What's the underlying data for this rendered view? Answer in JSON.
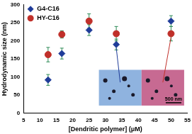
{
  "chart_data": {
    "type": "scatter",
    "x_label": "[Dendritic polymer] (μM)",
    "y_label": "Hydrodynamic size (nm)",
    "xlim": [
      5,
      55
    ],
    "xticks": [
      5,
      10,
      15,
      20,
      25,
      30,
      35,
      40,
      45,
      50,
      55
    ],
    "ylim": [
      0,
      300
    ],
    "yticks": [
      0,
      50,
      100,
      150,
      200,
      250,
      300
    ],
    "grid": false,
    "legend": "upper left",
    "annotation": "500 nm",
    "series": [
      {
        "name": "G4-C16",
        "color": "#1f3c99",
        "marker": "diamond",
        "x": [
          12.5,
          16.7,
          25,
          33.3,
          50
        ],
        "values": [
          92,
          165,
          230,
          190,
          255
        ],
        "errors": [
          15,
          15,
          15,
          15,
          15
        ]
      },
      {
        "name": "HY-C16",
        "color": "#c0302a",
        "marker": "circle",
        "x": [
          12.5,
          16.7,
          25,
          33.3,
          50
        ],
        "values": [
          162,
          218,
          255,
          220,
          220
        ],
        "errors": [
          20,
          10,
          20,
          20,
          20
        ]
      }
    ]
  }
}
